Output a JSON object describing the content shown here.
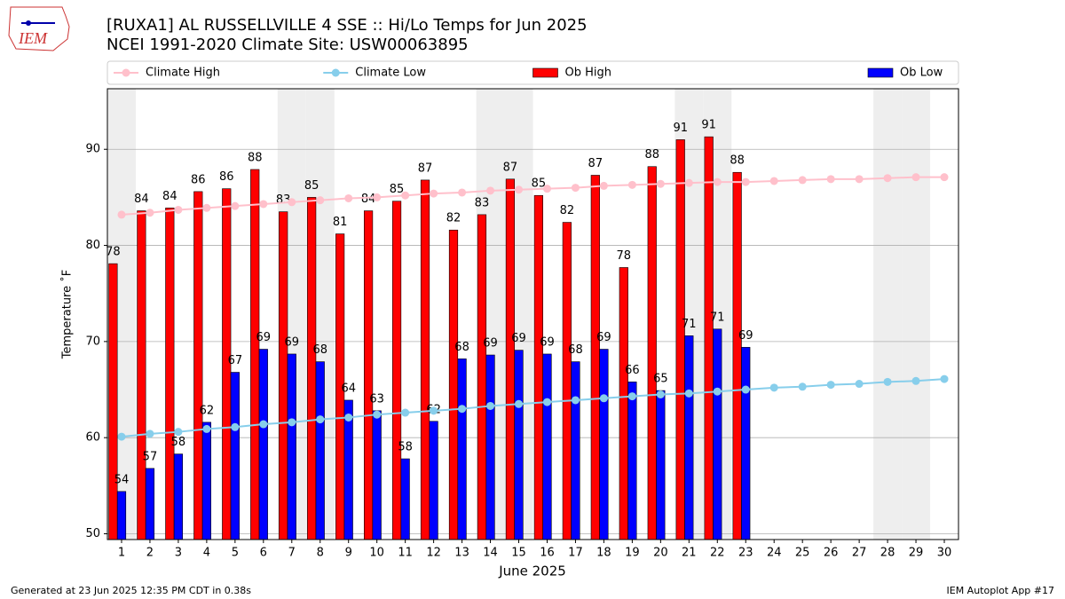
{
  "chart_data": {
    "type": "bar",
    "logo_text": "IEM",
    "title": "[RUXA1] AL RUSSELLVILLE 4 SSE :: Hi/Lo Temps for Jun 2025",
    "subtitle": "NCEI 1991-2020 Climate Site: USW00063895",
    "xlabel": "June 2025",
    "ylabel": "Temperature ˚F",
    "footer_left": "Generated at 23 Jun 2025 12:35 PM CDT in 0.38s",
    "footer_right": "IEM Autoplot App #17",
    "x": [
      1,
      2,
      3,
      4,
      5,
      6,
      7,
      8,
      9,
      10,
      11,
      12,
      13,
      14,
      15,
      16,
      17,
      18,
      19,
      20,
      21,
      22,
      23,
      24,
      25,
      26,
      27,
      28,
      29,
      30
    ],
    "xlim": [
      0.5,
      30.5
    ],
    "xticks": [
      1,
      2,
      3,
      4,
      5,
      6,
      7,
      8,
      9,
      10,
      11,
      12,
      13,
      14,
      15,
      16,
      17,
      18,
      19,
      20,
      21,
      22,
      23,
      24,
      25,
      26,
      27,
      28,
      29,
      30
    ],
    "ylim": [
      49.4,
      96.3
    ],
    "yticks": [
      50,
      60,
      70,
      80,
      90
    ],
    "grid": true,
    "legend": "top",
    "highlight_days": [
      1,
      7,
      8,
      14,
      15,
      21,
      22,
      28,
      29
    ],
    "highlight_color": "#eeeeee",
    "series": [
      {
        "name": "Climate High",
        "type": "line",
        "color": "#ffc0cb",
        "values": [
          83.2,
          83.4,
          83.7,
          83.9,
          84.1,
          84.3,
          84.5,
          84.7,
          84.9,
          85.0,
          85.2,
          85.4,
          85.5,
          85.7,
          85.8,
          85.9,
          86.0,
          86.2,
          86.3,
          86.4,
          86.5,
          86.6,
          86.6,
          86.7,
          86.8,
          86.9,
          86.9,
          87.0,
          87.1,
          87.1
        ]
      },
      {
        "name": "Climate Low",
        "type": "line",
        "color": "#87ceeb",
        "values": [
          60.1,
          60.4,
          60.6,
          60.9,
          61.1,
          61.4,
          61.6,
          61.9,
          62.1,
          62.4,
          62.6,
          62.8,
          63.0,
          63.3,
          63.5,
          63.7,
          63.9,
          64.1,
          64.3,
          64.5,
          64.6,
          64.8,
          65.0,
          65.2,
          65.3,
          65.5,
          65.6,
          65.8,
          65.9,
          66.1
        ]
      },
      {
        "name": "Ob High",
        "type": "bar",
        "color": "#ff0000",
        "values": [
          78.1,
          83.6,
          83.9,
          85.6,
          85.9,
          87.9,
          83.5,
          85.0,
          81.2,
          83.6,
          84.6,
          86.8,
          81.6,
          83.2,
          86.9,
          85.2,
          82.4,
          87.3,
          77.7,
          88.2,
          91.0,
          91.3,
          87.6,
          null,
          null,
          null,
          null,
          null,
          null,
          null
        ],
        "value_labels": [
          "78",
          "84",
          "84",
          "86",
          "86",
          "88",
          "83",
          "85",
          "81",
          "84",
          "85",
          "87",
          "82",
          "83",
          "87",
          "85",
          "82",
          "87",
          "78",
          "88",
          "91",
          "91",
          "88",
          null,
          null,
          null,
          null,
          null,
          null,
          null
        ]
      },
      {
        "name": "Ob Low",
        "type": "bar",
        "color": "#0000ff",
        "values": [
          54.4,
          56.8,
          58.3,
          61.6,
          66.8,
          69.2,
          68.7,
          67.9,
          63.9,
          62.8,
          57.8,
          61.7,
          68.2,
          68.6,
          69.1,
          68.7,
          67.9,
          69.2,
          65.8,
          64.9,
          70.6,
          71.3,
          69.4,
          null,
          null,
          null,
          null,
          null,
          null,
          null
        ],
        "value_labels": [
          "54",
          "57",
          "58",
          "62",
          "67",
          "69",
          "69",
          "68",
          "64",
          "63",
          "58",
          "62",
          "68",
          "69",
          "69",
          "69",
          "68",
          "69",
          "66",
          "65",
          "71",
          "71",
          "69",
          null,
          null,
          null,
          null,
          null,
          null,
          null
        ]
      }
    ]
  }
}
